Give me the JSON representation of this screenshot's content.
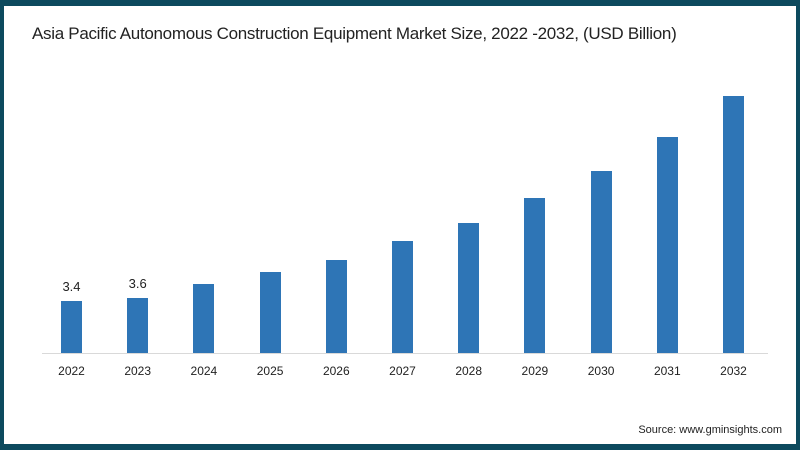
{
  "chart_data": {
    "type": "bar",
    "title": "Asia Pacific Autonomous Construction Equipment Market Size, 2022 -2032, (USD Billion)",
    "categories": [
      "2022",
      "2023",
      "2024",
      "2025",
      "2026",
      "2027",
      "2028",
      "2029",
      "2030",
      "2031",
      "2032"
    ],
    "values": [
      3.4,
      3.6,
      4.5,
      5.3,
      6.1,
      7.3,
      8.5,
      10.1,
      11.9,
      14.1,
      16.8
    ],
    "data_labels": {
      "2022": "3.4",
      "2023": "3.6"
    },
    "xlabel": "",
    "ylabel": "USD Billion",
    "ylim": [
      0,
      17
    ],
    "grid": false,
    "legend": null,
    "bar_color": "#2e75b6"
  },
  "title": "Asia Pacific Autonomous Construction Equipment Market Size, 2022 -2032, (USD Billion)",
  "source": "Source: www.gminsights.com",
  "labels": {
    "v2022": "3.4",
    "v2023": "3.6"
  }
}
